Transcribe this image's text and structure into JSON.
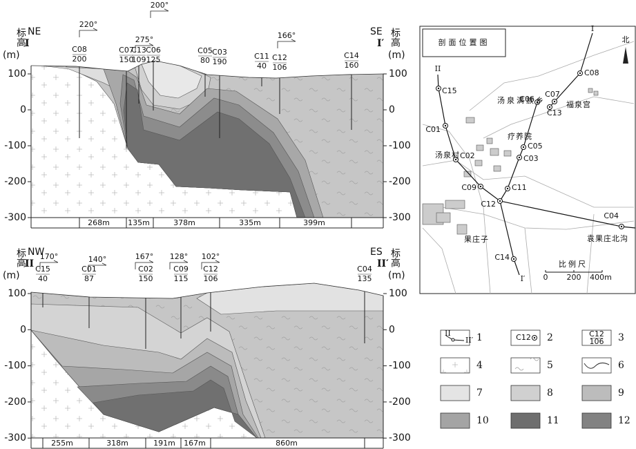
{
  "section_1": {
    "left_direction": "NE",
    "left_marker": "I",
    "right_direction": "SE",
    "right_marker": "I′",
    "axis_label": "标高",
    "axis_unit": "(m)",
    "ticks": [
      "100",
      "0",
      "-100",
      "-200",
      "-300"
    ],
    "wells": [
      {
        "name": "C08",
        "elevation": "200"
      },
      {
        "name": "C07",
        "elevation": "150"
      },
      {
        "name": "C13",
        "elevation": "109"
      },
      {
        "name": "C06",
        "elevation": "125"
      },
      {
        "name": "C05",
        "elevation": "80"
      },
      {
        "name": "C03",
        "elevation": "190"
      },
      {
        "name": "C11",
        "elevation": "40"
      },
      {
        "name": "C12",
        "elevation": "106"
      },
      {
        "name": "C14",
        "elevation": "160"
      }
    ],
    "azimuths": [
      "220°",
      "275°",
      "200°",
      "166°"
    ],
    "distances": [
      "268m",
      "135m",
      "378m",
      "335m",
      "399m"
    ]
  },
  "section_2": {
    "left_direction": "NW",
    "left_marker": "II",
    "right_direction": "ES",
    "right_marker": "II′",
    "axis_label": "标高",
    "axis_unit": "(m)",
    "ticks": [
      "100",
      "0",
      "-100",
      "-200",
      "-300"
    ],
    "wells": [
      {
        "name": "C15",
        "elevation": "40"
      },
      {
        "name": "C01",
        "elevation": "87"
      },
      {
        "name": "C02",
        "elevation": "150"
      },
      {
        "name": "C09",
        "elevation": "115"
      },
      {
        "name": "C12",
        "elevation": "106"
      },
      {
        "name": "C04",
        "elevation": "135"
      }
    ],
    "azimuths": [
      "170°",
      "140°",
      "167°",
      "128°",
      "102°"
    ],
    "distances": [
      "255m",
      "318m",
      "191m",
      "167m",
      "860m"
    ]
  },
  "location_map": {
    "title": "剖面位置图",
    "north": "北",
    "places": [
      "汤泉满族乡",
      "疗养院",
      "汤泉村",
      "福泉宫",
      "果庄子",
      "袁果庄北沟"
    ],
    "wells": [
      "C15",
      "C01",
      "C02",
      "C09",
      "C12",
      "C14",
      "C11",
      "C03",
      "C05",
      "C06",
      "C13",
      "C07",
      "C08",
      "C04"
    ],
    "section_labels": [
      "I",
      "II",
      "I′"
    ],
    "scale": {
      "label": "比例尺",
      "ticks": [
        "0",
        "200",
        "400m"
      ]
    }
  },
  "legend": {
    "items": [
      {
        "number": "1",
        "symbol": [
          "II",
          "II′"
        ]
      },
      {
        "number": "2",
        "symbol": [
          "C12"
        ]
      },
      {
        "number": "3",
        "symbol": [
          "C12",
          "106"
        ]
      },
      {
        "number": "4"
      },
      {
        "number": "5"
      },
      {
        "number": "6"
      },
      {
        "number": "7"
      },
      {
        "number": "8"
      },
      {
        "number": "9"
      },
      {
        "number": "10"
      },
      {
        "number": "11"
      },
      {
        "number": "12"
      }
    ]
  }
}
